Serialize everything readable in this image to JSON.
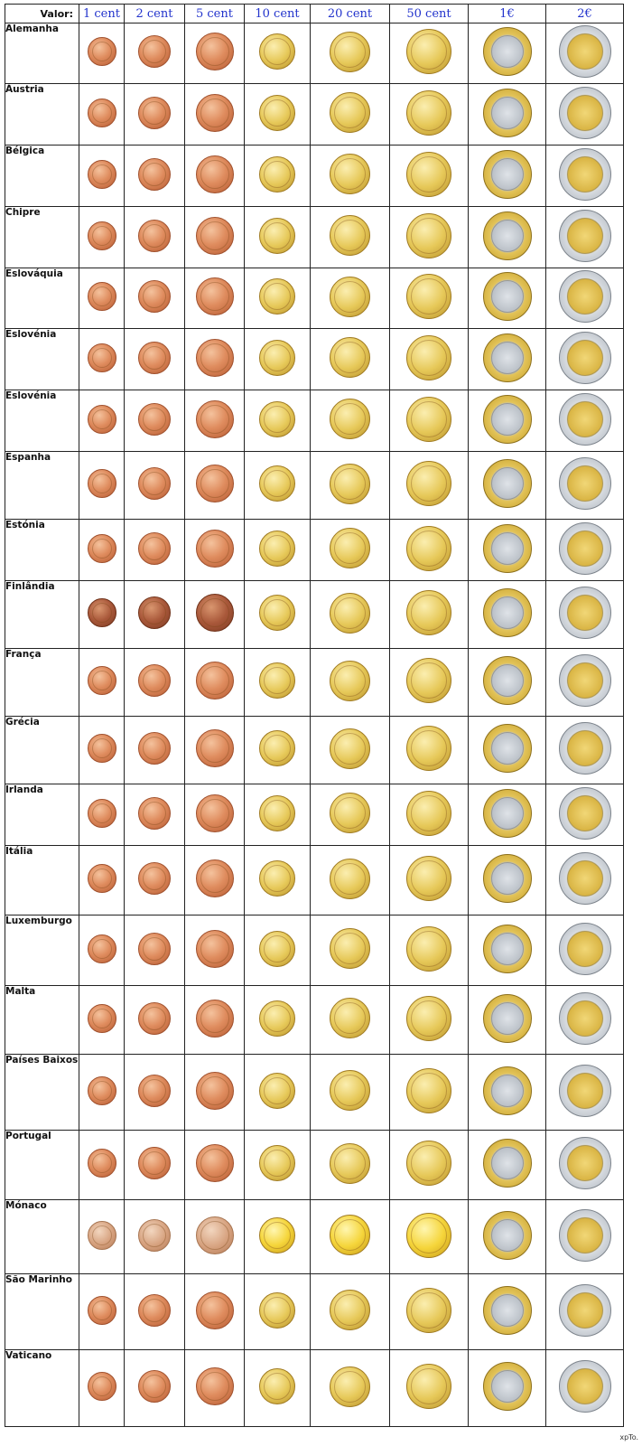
{
  "header": {
    "label": "Valor:",
    "denominations": [
      "1 cent",
      "2 cent",
      "5 cent",
      "10 cent",
      "20 cent",
      "50 cent",
      "1€",
      "2€"
    ]
  },
  "countries": [
    "Alemanha",
    "Áustria",
    "Bélgica",
    "Chipre",
    "Eslováquia",
    "Eslovénia",
    "Eslovénia",
    "Espanha",
    "Estónia",
    "Finlândia",
    "França",
    "Grécia",
    "Irlanda",
    "Itália",
    "Luxemburgo",
    "Malta",
    "Países Baixos",
    "Portugal",
    "Mónaco",
    "São Marinho",
    "Vaticano"
  ],
  "watermark": "xpTo.",
  "colors": {
    "header_text": "#2233cc",
    "copper": "#df8c5e",
    "gold": "#e6c858",
    "silver": "#c0c5cc"
  },
  "icons": [
    "copper-coin-icon",
    "gold-coin-icon",
    "bimetal-coin-icon"
  ]
}
